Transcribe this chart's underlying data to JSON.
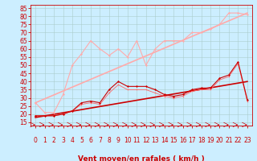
{
  "background_color": "#cceeff",
  "grid_color": "#aacccc",
  "xlabel": "Vent moyen/en rafales ( km/h )",
  "xlabel_color": "#cc0000",
  "xlabel_fontsize": 6.5,
  "tick_color": "#cc0000",
  "tick_fontsize": 5.5,
  "yticks": [
    15,
    20,
    25,
    30,
    35,
    40,
    45,
    50,
    55,
    60,
    65,
    70,
    75,
    80,
    85
  ],
  "xticks": [
    0,
    1,
    2,
    3,
    4,
    5,
    6,
    7,
    8,
    9,
    10,
    11,
    12,
    13,
    14,
    15,
    16,
    17,
    18,
    19,
    20,
    21,
    22,
    23
  ],
  "ylim": [
    13,
    87
  ],
  "xlim": [
    -0.5,
    23.5
  ],
  "series": [
    {
      "x": [
        0,
        1,
        2,
        3,
        4,
        5,
        6,
        7,
        8,
        9,
        10,
        11,
        12,
        13,
        14,
        15,
        16,
        17,
        18,
        19,
        20,
        21,
        22,
        23
      ],
      "y": [
        27,
        21,
        21,
        32,
        50,
        57,
        65,
        60,
        56,
        60,
        55,
        65,
        50,
        60,
        65,
        65,
        65,
        70,
        70,
        72,
        75,
        82,
        82,
        81
      ],
      "color": "#ffaaaa",
      "marker": "D",
      "markersize": 1.5,
      "linewidth": 0.8,
      "zorder": 3
    },
    {
      "x": [
        0,
        1,
        2,
        3,
        4,
        5,
        6,
        7,
        8,
        9,
        10,
        11,
        12,
        13,
        14,
        15,
        16,
        17,
        18,
        19,
        20,
        21,
        22,
        23
      ],
      "y": [
        19,
        19,
        19,
        20,
        22,
        27,
        28,
        27,
        35,
        40,
        37,
        37,
        37,
        35,
        32,
        31,
        32,
        35,
        36,
        36,
        42,
        44,
        52,
        29
      ],
      "color": "#cc0000",
      "marker": "D",
      "markersize": 1.5,
      "linewidth": 0.8,
      "zorder": 4
    },
    {
      "x": [
        0,
        23
      ],
      "y": [
        18,
        40
      ],
      "color": "#cc0000",
      "marker": null,
      "markersize": 0,
      "linewidth": 1.2,
      "zorder": 2
    },
    {
      "x": [
        0,
        23
      ],
      "y": [
        27,
        82
      ],
      "color": "#ffaaaa",
      "marker": null,
      "markersize": 0,
      "linewidth": 1.2,
      "zorder": 2
    },
    {
      "x": [
        0,
        1,
        2,
        3,
        4,
        5,
        6,
        7,
        8,
        9,
        10,
        11,
        12,
        13,
        14,
        15,
        16,
        17,
        18,
        19,
        20,
        21,
        22,
        23
      ],
      "y": [
        19,
        19,
        19,
        20,
        22,
        26,
        27,
        26,
        33,
        38,
        35,
        35,
        35,
        33,
        31,
        30,
        31,
        34,
        35,
        35,
        41,
        43,
        51,
        28
      ],
      "color": "#ff6666",
      "marker": "D",
      "markersize": 1.0,
      "linewidth": 0.6,
      "zorder": 3
    }
  ]
}
